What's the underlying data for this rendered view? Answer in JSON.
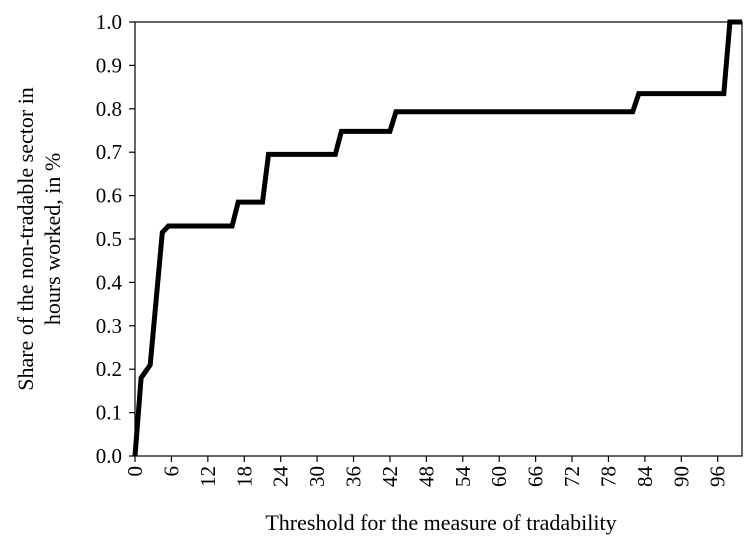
{
  "chart_data": {
    "type": "line",
    "title": "",
    "xlabel": "Threshold for the measure of tradability",
    "ylabel_lines": [
      "Share of the non-tradable sector in",
      "hours worked, in %"
    ],
    "xlim": [
      0,
      100
    ],
    "ylim": [
      0,
      1
    ],
    "x_ticks": [
      0,
      6,
      12,
      18,
      24,
      30,
      36,
      42,
      48,
      54,
      60,
      66,
      72,
      78,
      84,
      90,
      96
    ],
    "x_tick_labels": [
      "0",
      "6",
      "12",
      "18",
      "24",
      "30",
      "36",
      "42",
      "48",
      "54",
      "60",
      "66",
      "72",
      "78",
      "84",
      "90",
      "96"
    ],
    "y_ticks": [
      0,
      0.1,
      0.2,
      0.3,
      0.4,
      0.5,
      0.6,
      0.7,
      0.8,
      0.9,
      1.0
    ],
    "y_tick_labels": [
      "0.0",
      "0.1",
      "0.2",
      "0.3",
      "0.4",
      "0.5",
      "0.6",
      "0.7",
      "0.8",
      "0.9",
      "1.0"
    ],
    "grid": false,
    "legend": "none",
    "series": [
      {
        "color": "#000000",
        "x": [
          0,
          1,
          2.5,
          4.5,
          5.5,
          16,
          17,
          21,
          22,
          33,
          34,
          42,
          43,
          82,
          83,
          97,
          98,
          100
        ],
        "y": [
          0.0,
          0.18,
          0.21,
          0.515,
          0.53,
          0.53,
          0.585,
          0.585,
          0.695,
          0.695,
          0.748,
          0.748,
          0.793,
          0.793,
          0.835,
          0.835,
          1.0,
          1.0
        ]
      }
    ]
  }
}
